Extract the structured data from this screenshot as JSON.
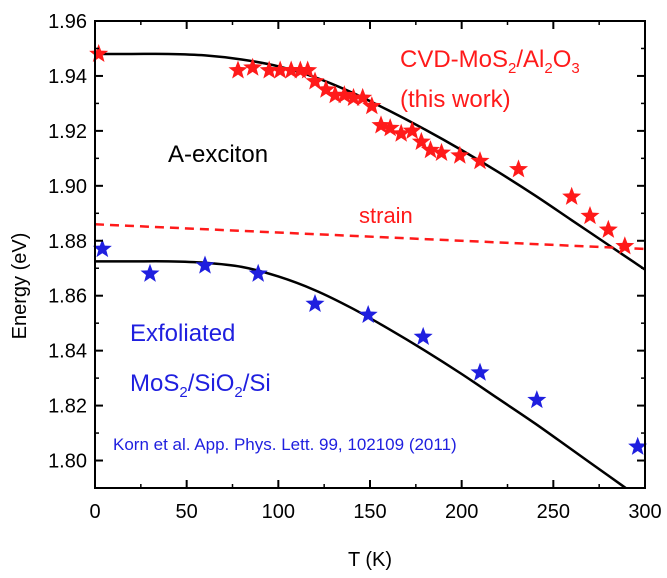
{
  "chart_data": {
    "type": "scatter",
    "xlabel": "T (K)",
    "ylabel": "Energy (eV)",
    "xlim": [
      0,
      300
    ],
    "ylim": [
      1.79,
      1.96
    ],
    "x_ticks": [
      "0",
      "50",
      "100",
      "150",
      "200",
      "250",
      "300"
    ],
    "y_ticks": [
      "1.80",
      "1.82",
      "1.84",
      "1.86",
      "1.88",
      "1.90",
      "1.92",
      "1.94",
      "1.96"
    ],
    "grid": false,
    "colors": {
      "cvd": "#ff1a1a",
      "exfoliated": "#1f1fdf",
      "fit": "#000000",
      "strain": "#ff1a1a"
    },
    "series": [
      {
        "key": "cvd",
        "x": [
          2,
          78,
          86,
          95,
          101,
          107,
          112,
          116,
          120,
          126,
          131,
          136,
          141,
          146,
          151,
          156,
          161,
          167,
          173,
          178,
          183,
          189,
          199,
          210,
          231,
          260,
          270,
          280,
          289
        ],
        "y": [
          1.948,
          1.942,
          1.943,
          1.942,
          1.942,
          1.942,
          1.942,
          1.942,
          1.938,
          1.935,
          1.933,
          1.933,
          1.932,
          1.932,
          1.929,
          1.922,
          1.921,
          1.919,
          1.92,
          1.916,
          1.913,
          1.912,
          1.911,
          1.909,
          1.906,
          1.896,
          1.889,
          1.884,
          1.878
        ]
      },
      {
        "key": "exfoliated",
        "x": [
          4,
          30,
          60,
          89,
          120,
          149,
          179,
          210,
          241,
          296
        ],
        "y": [
          1.877,
          1.868,
          1.871,
          1.868,
          1.857,
          1.853,
          1.845,
          1.832,
          1.822,
          1.805
        ]
      }
    ],
    "fits": [
      {
        "key": "cvd_fit",
        "x": [
          0,
          20,
          40,
          60,
          80,
          100,
          120,
          140,
          160,
          180,
          200,
          220,
          240,
          260,
          280,
          300
        ],
        "y": [
          1.948,
          1.948,
          1.948,
          1.9475,
          1.946,
          1.9435,
          1.9395,
          1.934,
          1.9275,
          1.9205,
          1.913,
          1.905,
          1.8965,
          1.8875,
          1.8785,
          1.8695
        ]
      },
      {
        "key": "exf_fit",
        "x": [
          0,
          20,
          40,
          60,
          80,
          100,
          120,
          140,
          160,
          180,
          200,
          220,
          240,
          260,
          280,
          300
        ],
        "y": [
          1.8725,
          1.8725,
          1.8725,
          1.872,
          1.8705,
          1.867,
          1.862,
          1.8555,
          1.848,
          1.84,
          1.8315,
          1.8225,
          1.8135,
          1.804,
          1.7945,
          1.785
        ]
      },
      {
        "key": "strain",
        "x": [
          0,
          300
        ],
        "y": [
          1.886,
          1.877
        ]
      }
    ],
    "annotations": {
      "cvd_pre": "CVD-MoS",
      "cvd_s1": "2",
      "cvd_mid": "/Al",
      "cvd_s2": "2",
      "cvd_o": "O",
      "cvd_s3": "3",
      "this_work": "(this work)",
      "exciton": "A-exciton",
      "strain": "strain",
      "exfoliated": "Exfoliated",
      "exf_mos": "MoS",
      "exf_s1": "2",
      "exf_mid": "/SiO",
      "exf_s2": "2",
      "exf_end": "/Si",
      "reference": "Korn et al. App. Phys. Lett. 99, 102109 (2011)"
    }
  }
}
